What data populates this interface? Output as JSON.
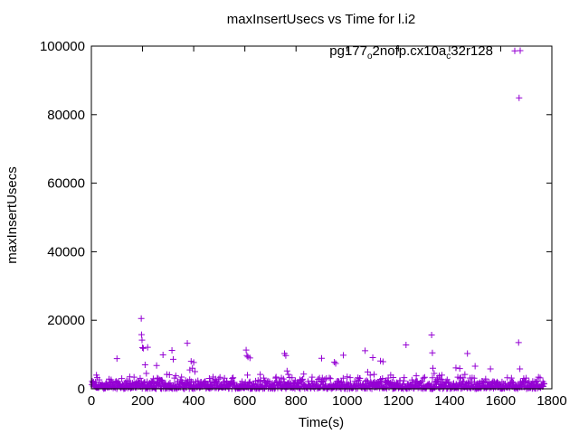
{
  "chart_data": {
    "type": "scatter",
    "title": "maxInsertUsecs vs Time for l.i2",
    "xlabel": "Time(s)",
    "ylabel": "maxInsertUsecs",
    "xlim": [
      0,
      1800
    ],
    "ylim": [
      0,
      100000
    ],
    "xticks": [
      0,
      200,
      400,
      600,
      800,
      1000,
      1200,
      1400,
      1600,
      1800
    ],
    "yticks": [
      0,
      20000,
      40000,
      60000,
      80000,
      100000
    ],
    "xtick_labels": [
      "0",
      "200",
      "400",
      "600",
      "800",
      "1000",
      "1200",
      "1400",
      "1600",
      "1800"
    ],
    "ytick_labels": [
      "0",
      "20000",
      "40000",
      "60000",
      "80000",
      "100000"
    ],
    "grid": false,
    "legend_position": "top-right",
    "marker": "plus",
    "color": "#9400d3",
    "series": [
      {
        "name": "pg177_o2nofp.cx10a_c32r128",
        "legend_parts": [
          {
            "text": "pg177",
            "sub": false
          },
          {
            "text": "o",
            "sub": true
          },
          {
            "text": "2nofp.cx10a",
            "sub": false
          },
          {
            "text": "c",
            "sub": true
          },
          {
            "text": "32r128",
            "sub": false
          }
        ],
        "outliers": [
          [
            20,
            4000
          ],
          [
            100,
            8800
          ],
          [
            150,
            3500
          ],
          [
            195,
            20500
          ],
          [
            196,
            15800
          ],
          [
            198,
            14200
          ],
          [
            200,
            12000
          ],
          [
            203,
            11800
          ],
          [
            210,
            7000
          ],
          [
            215,
            4500
          ],
          [
            220,
            12100
          ],
          [
            255,
            6800
          ],
          [
            280,
            9900
          ],
          [
            295,
            4200
          ],
          [
            305,
            4100
          ],
          [
            315,
            11200
          ],
          [
            320,
            8600
          ],
          [
            330,
            3800
          ],
          [
            375,
            13300
          ],
          [
            385,
            5500
          ],
          [
            390,
            8000
          ],
          [
            395,
            6000
          ],
          [
            400,
            7700
          ],
          [
            405,
            5000
          ],
          [
            605,
            11300
          ],
          [
            608,
            9700
          ],
          [
            610,
            4000
          ],
          [
            612,
            9300
          ],
          [
            620,
            9000
          ],
          [
            660,
            4200
          ],
          [
            755,
            10300
          ],
          [
            760,
            9700
          ],
          [
            765,
            5200
          ],
          [
            770,
            4200
          ],
          [
            775,
            3300
          ],
          [
            830,
            4300
          ],
          [
            900,
            8900
          ],
          [
            950,
            7800
          ],
          [
            955,
            7400
          ],
          [
            985,
            9800
          ],
          [
            1000,
            3500
          ],
          [
            1070,
            11100
          ],
          [
            1080,
            4900
          ],
          [
            1090,
            4000
          ],
          [
            1100,
            9100
          ],
          [
            1105,
            4200
          ],
          [
            1130,
            8100
          ],
          [
            1140,
            7900
          ],
          [
            1170,
            4000
          ],
          [
            1180,
            3300
          ],
          [
            1230,
            12800
          ],
          [
            1270,
            3800
          ],
          [
            1330,
            15700
          ],
          [
            1333,
            10500
          ],
          [
            1335,
            6000
          ],
          [
            1340,
            4500
          ],
          [
            1360,
            3800
          ],
          [
            1370,
            4000
          ],
          [
            1425,
            6100
          ],
          [
            1440,
            5900
          ],
          [
            1460,
            4200
          ],
          [
            1470,
            10300
          ],
          [
            1500,
            6600
          ],
          [
            1560,
            5800
          ],
          [
            1655,
            98600
          ],
          [
            1670,
            13500
          ],
          [
            1672,
            84900
          ],
          [
            1675,
            5800
          ],
          [
            1690,
            3000
          ]
        ]
      }
    ]
  }
}
